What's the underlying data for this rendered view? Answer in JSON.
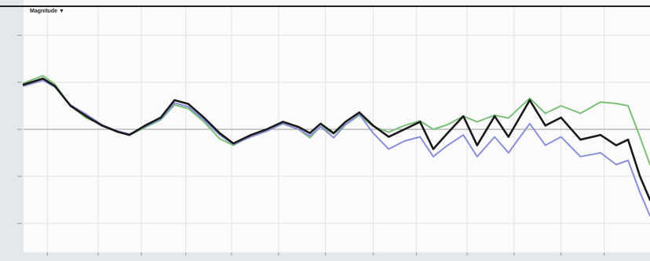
{
  "chart_data": {
    "type": "line",
    "title": "Magnitude ▼",
    "x": [
      0,
      3.1,
      5.0,
      7.5,
      10.0,
      12.5,
      15.0,
      16.9,
      19.4,
      21.9,
      24.1,
      26.3,
      28.8,
      31.3,
      33.5,
      36.3,
      38.8,
      41.4,
      43.9,
      45.7,
      47.4,
      49.5,
      51.4,
      53.6,
      55.8,
      58.3,
      60.8,
      63.3,
      65.4,
      67.7,
      70.2,
      72.4,
      75.2,
      77.4,
      80.8,
      83.3,
      85.8,
      88.9,
      92.1,
      94.6,
      96.5,
      98.4,
      100
    ],
    "series": [
      {
        "color": "#7cc07a",
        "values": [
          4.9,
          5.7,
          4.8,
          2.5,
          1.2,
          0.5,
          -0.3,
          -0.6,
          0.2,
          1.0,
          2.6,
          2.2,
          0.8,
          -1.0,
          -1.7,
          -0.7,
          -0.2,
          0.6,
          0,
          -0.9,
          0.3,
          -0.5,
          0.5,
          1.5,
          0.3,
          -0.3,
          0.4,
          0.9,
          0,
          0.5,
          1.4,
          0.8,
          1.5,
          1.2,
          3.3,
          1.7,
          2.5,
          1.7,
          2.9,
          2.75,
          2.5,
          -0.8,
          -3.75
        ]
      },
      {
        "color": "#8a8fd8",
        "values": [
          4.6,
          5.2,
          4.5,
          2.6,
          1.6,
          0.5,
          -0.2,
          -0.5,
          0.3,
          1.1,
          2.8,
          2.4,
          1.0,
          -0.6,
          -1.6,
          -0.8,
          -0.2,
          0.6,
          0,
          -0.7,
          0.3,
          -0.9,
          0.5,
          1.6,
          -0.4,
          -2.1,
          -1.25,
          -0.8,
          -2.9,
          -1.7,
          -0.6,
          -2.9,
          -0.8,
          -2.5,
          0.6,
          -1.7,
          -0.8,
          -2.9,
          -2.5,
          -3.75,
          -3.3,
          -6.7,
          -9.2
        ]
      },
      {
        "color": "#1a1a1a",
        "values": [
          4.75,
          5.4,
          4.6,
          2.5,
          1.4,
          0.4,
          -0.25,
          -0.6,
          0.4,
          1.25,
          3.1,
          2.7,
          1.25,
          -0.4,
          -1.5,
          -0.6,
          0,
          0.8,
          0.25,
          -0.4,
          0.6,
          -0.4,
          0.8,
          1.8,
          0.4,
          -0.8,
          0,
          0.8,
          -2.1,
          -0.4,
          1.4,
          -1.7,
          1.4,
          -0.8,
          3.1,
          0.4,
          1.25,
          -1.1,
          -0.6,
          -1.7,
          -1.1,
          -5,
          -7.5
        ]
      }
    ],
    "xlim": [
      0,
      100
    ],
    "ylim": [
      -13,
      13
    ],
    "xticks": [
      3.8,
      11.9,
      18.8,
      25.9,
      33.2,
      40.7,
      48.2,
      55.8,
      62.7,
      70.8,
      78.3,
      85.8,
      92.7
    ],
    "yticks": [
      -10,
      -5,
      0,
      5,
      10
    ],
    "grid": true
  }
}
